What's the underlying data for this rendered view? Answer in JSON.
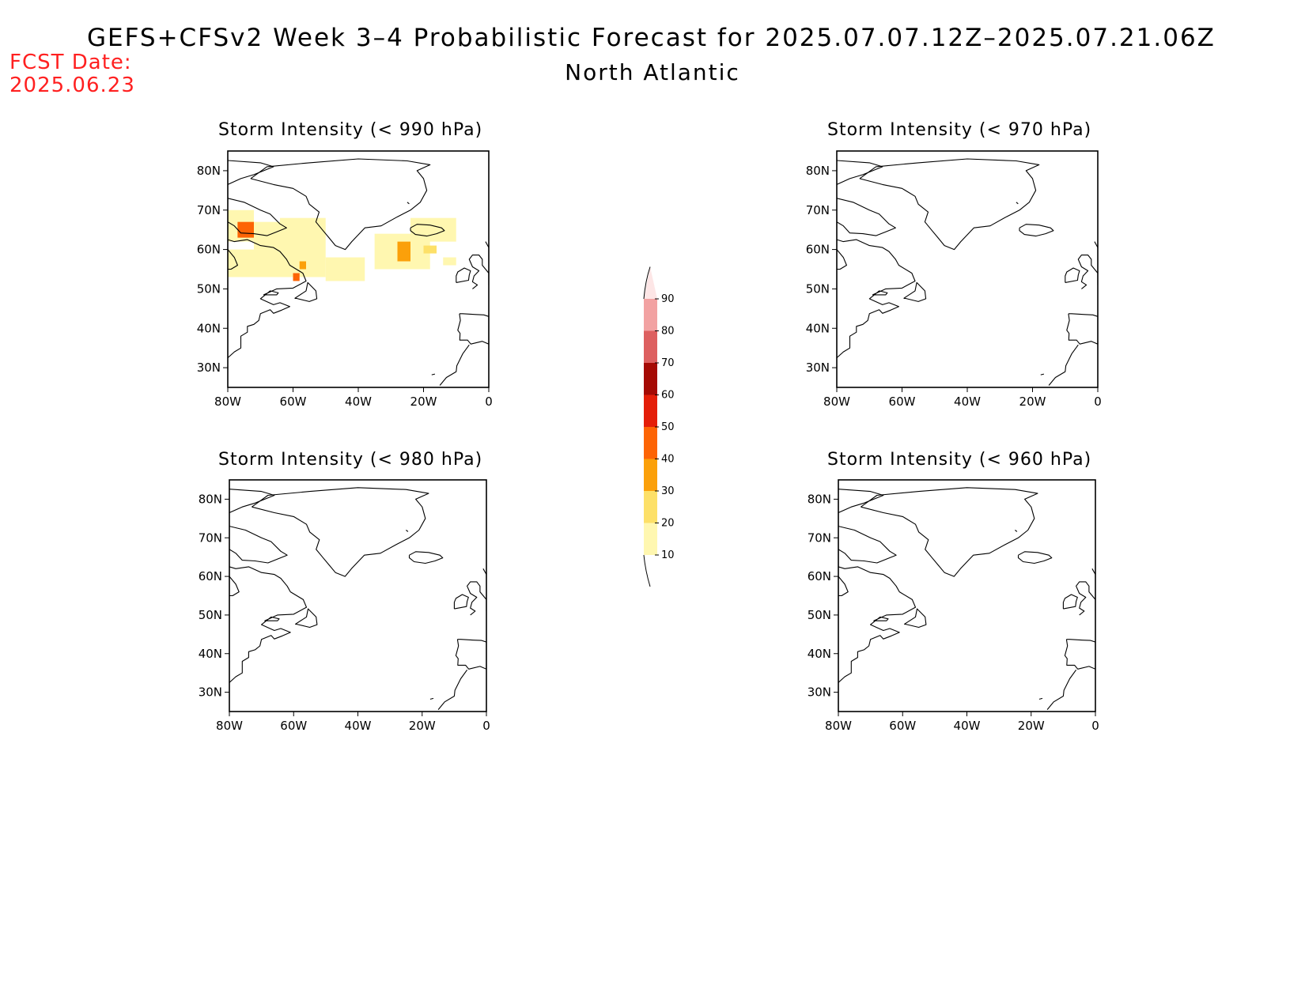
{
  "header": {
    "title": "GEFS+CFSv2 Week 3–4 Probabilistic Forecast for 2025.07.07.12Z–2025.07.21.06Z",
    "region": "North Atlantic",
    "fcst_label": "FCST Date:",
    "fcst_date": "2025.06.23"
  },
  "axes": {
    "lon_ticks": [
      "80W",
      "60W",
      "40W",
      "20W",
      "0"
    ],
    "lat_ticks": [
      "80N",
      "70N",
      "60N",
      "50N",
      "40N",
      "30N"
    ],
    "lon_values": [
      -80,
      -60,
      -40,
      -20,
      0
    ],
    "lat_values": [
      80,
      70,
      60,
      50,
      40,
      30
    ],
    "lon_range": [
      -80,
      0
    ],
    "lat_range": [
      25,
      85
    ]
  },
  "panels": [
    {
      "title": "Storm Intensity (< 990 hPa)",
      "threshold_hPa": 990,
      "probability_cells": [
        {
          "lon": [
            -80,
            -72
          ],
          "lat": [
            62,
            70
          ],
          "prob": 15
        },
        {
          "lon": [
            -77,
            -72
          ],
          "lat": [
            63,
            67
          ],
          "prob": 40
        },
        {
          "lon": [
            -72,
            -64
          ],
          "lat": [
            60,
            67
          ],
          "prob": 15
        },
        {
          "lon": [
            -80,
            -64
          ],
          "lat": [
            53,
            60
          ],
          "prob": 15
        },
        {
          "lon": [
            -64,
            -50
          ],
          "lat": [
            53,
            68
          ],
          "prob": 15
        },
        {
          "lon": [
            -58,
            -56
          ],
          "lat": [
            55,
            57
          ],
          "prob": 35
        },
        {
          "lon": [
            -60,
            -58
          ],
          "lat": [
            52,
            54
          ],
          "prob": 40
        },
        {
          "lon": [
            -50,
            -38
          ],
          "lat": [
            52,
            58
          ],
          "prob": 15
        },
        {
          "lon": [
            -35,
            -18
          ],
          "lat": [
            55,
            64
          ],
          "prob": 15
        },
        {
          "lon": [
            -28,
            -24
          ],
          "lat": [
            57,
            62
          ],
          "prob": 35
        },
        {
          "lon": [
            -24,
            -10
          ],
          "lat": [
            62,
            68
          ],
          "prob": 15
        },
        {
          "lon": [
            -20,
            -16
          ],
          "lat": [
            59,
            61
          ],
          "prob": 25
        },
        {
          "lon": [
            -14,
            -10
          ],
          "lat": [
            56,
            58
          ],
          "prob": 15
        }
      ]
    },
    {
      "title": "Storm Intensity (< 970 hPa)",
      "threshold_hPa": 970,
      "probability_cells": []
    },
    {
      "title": "Storm Intensity (< 980 hPa)",
      "threshold_hPa": 980,
      "probability_cells": []
    },
    {
      "title": "Storm Intensity (< 960 hPa)",
      "threshold_hPa": 960,
      "probability_cells": []
    }
  ],
  "colorbar": {
    "labels": [
      "10",
      "20",
      "30",
      "40",
      "50",
      "60",
      "70",
      "80",
      "90"
    ],
    "bins": [
      {
        "min": 10,
        "max": 20,
        "color": "#fff7b0"
      },
      {
        "min": 20,
        "max": 30,
        "color": "#fde068"
      },
      {
        "min": 30,
        "max": 40,
        "color": "#fba00a"
      },
      {
        "min": 40,
        "max": 50,
        "color": "#fd6405"
      },
      {
        "min": 50,
        "max": 60,
        "color": "#e41e08"
      },
      {
        "min": 60,
        "max": 70,
        "color": "#a50a04"
      },
      {
        "min": 70,
        "max": 80,
        "color": "#dd6060"
      },
      {
        "min": 80,
        "max": 90,
        "color": "#f2a2a2"
      },
      {
        "min": 90,
        "max": 100,
        "color": "#fde6e6"
      }
    ]
  }
}
